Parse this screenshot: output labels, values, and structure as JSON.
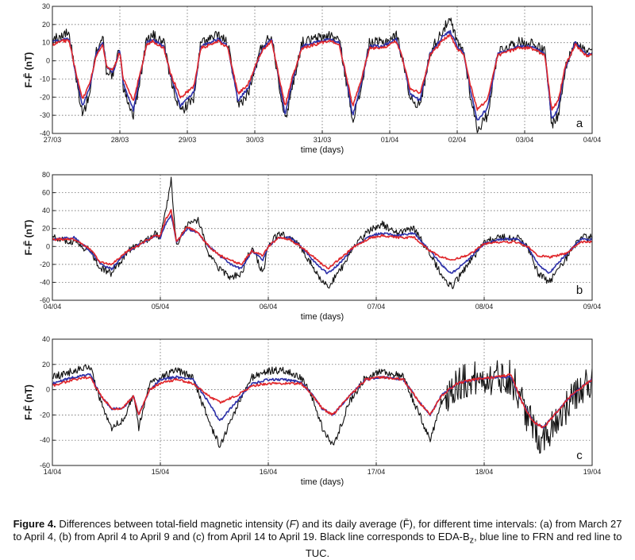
{
  "chart_data": [
    {
      "type": "line",
      "panel_label": "a",
      "xlabel": "time (days)",
      "ylabel": "F-F̄ (nT)",
      "xlim": [
        0,
        8
      ],
      "ylim": [
        -40,
        30
      ],
      "yticks": [
        -40,
        -30,
        -20,
        -10,
        0,
        10,
        20,
        30
      ],
      "xticks": [
        "27/03",
        "28/03",
        "29/03",
        "30/03",
        "31/03",
        "01/04",
        "02/04",
        "03/04",
        "04/04"
      ],
      "grid": true,
      "series": [
        {
          "color": "#111111",
          "noise": 3,
          "x": [
            0,
            0.15,
            0.25,
            0.35,
            0.45,
            0.55,
            0.65,
            0.75,
            0.8,
            0.9,
            1.0,
            1.05,
            1.2,
            1.3,
            1.4,
            1.5,
            1.55,
            1.65,
            1.75,
            1.9,
            2.1,
            2.2,
            2.35,
            2.45,
            2.6,
            2.75,
            2.9,
            3.1,
            3.25,
            3.35,
            3.45,
            3.55,
            3.7,
            3.9,
            4.1,
            4.25,
            4.35,
            4.45,
            4.55,
            4.7,
            4.9,
            5.1,
            5.2,
            5.3,
            5.45,
            5.6,
            5.8,
            5.9,
            6.0,
            6.1,
            6.2,
            6.3,
            6.45,
            6.6,
            6.75,
            6.9,
            7.1,
            7.3,
            7.4,
            7.5,
            7.6,
            7.75,
            7.9,
            8.0
          ],
          "y": [
            12,
            14,
            15,
            -10,
            -30,
            -18,
            5,
            14,
            -5,
            -8,
            8,
            -15,
            -30,
            -10,
            12,
            14,
            12,
            10,
            -10,
            -28,
            -20,
            10,
            12,
            14,
            10,
            -25,
            -18,
            8,
            14,
            -10,
            -33,
            -15,
            10,
            12,
            14,
            12,
            -10,
            -32,
            -20,
            10,
            10,
            14,
            0,
            -20,
            -25,
            5,
            18,
            22,
            10,
            5,
            -20,
            -38,
            -30,
            5,
            8,
            10,
            10,
            5,
            -35,
            -30,
            -5,
            12,
            5,
            5
          ]
        },
        {
          "color": "#2b2fa8",
          "noise": 0.8,
          "x": [
            0,
            0.15,
            0.25,
            0.35,
            0.45,
            0.55,
            0.65,
            0.75,
            0.8,
            0.9,
            1.0,
            1.05,
            1.2,
            1.3,
            1.4,
            1.5,
            1.55,
            1.65,
            1.75,
            1.9,
            2.1,
            2.2,
            2.35,
            2.45,
            2.6,
            2.75,
            2.9,
            3.1,
            3.25,
            3.35,
            3.45,
            3.55,
            3.7,
            3.9,
            4.1,
            4.25,
            4.35,
            4.45,
            4.55,
            4.7,
            4.9,
            5.1,
            5.2,
            5.3,
            5.45,
            5.6,
            5.8,
            5.9,
            6.0,
            6.1,
            6.2,
            6.3,
            6.45,
            6.6,
            6.75,
            6.9,
            7.1,
            7.3,
            7.4,
            7.5,
            7.6,
            7.75,
            7.9,
            8.0
          ],
          "y": [
            10,
            12,
            12,
            -8,
            -25,
            -15,
            4,
            10,
            -3,
            -6,
            6,
            -12,
            -27,
            -8,
            10,
            12,
            10,
            8,
            -8,
            -25,
            -17,
            8,
            10,
            12,
            8,
            -22,
            -15,
            6,
            12,
            -8,
            -30,
            -12,
            8,
            10,
            12,
            10,
            -8,
            -30,
            -17,
            8,
            8,
            12,
            0,
            -18,
            -22,
            4,
            14,
            16,
            8,
            4,
            -17,
            -33,
            -26,
            4,
            6,
            8,
            8,
            4,
            -32,
            -26,
            -4,
            10,
            4,
            4
          ]
        },
        {
          "color": "#e0262a",
          "noise": 0.8,
          "x": [
            0,
            0.15,
            0.25,
            0.35,
            0.45,
            0.55,
            0.65,
            0.75,
            0.8,
            0.9,
            1.0,
            1.05,
            1.2,
            1.3,
            1.4,
            1.5,
            1.55,
            1.65,
            1.75,
            1.9,
            2.1,
            2.2,
            2.35,
            2.45,
            2.6,
            2.75,
            2.9,
            3.1,
            3.25,
            3.35,
            3.45,
            3.55,
            3.7,
            3.9,
            4.1,
            4.25,
            4.35,
            4.45,
            4.55,
            4.7,
            4.9,
            5.1,
            5.2,
            5.3,
            5.45,
            5.6,
            5.8,
            5.9,
            6.0,
            6.1,
            6.2,
            6.3,
            6.45,
            6.6,
            6.75,
            6.9,
            7.1,
            7.3,
            7.4,
            7.5,
            7.6,
            7.75,
            7.9,
            8.0
          ],
          "y": [
            9,
            11,
            11,
            -7,
            -21,
            -13,
            3,
            9,
            -3,
            -5,
            5,
            -10,
            -22,
            -7,
            9,
            11,
            9,
            7,
            -7,
            -20,
            -14,
            7,
            9,
            11,
            7,
            -18,
            -13,
            5,
            11,
            -7,
            -25,
            -10,
            7,
            9,
            11,
            9,
            -7,
            -25,
            -14,
            7,
            7,
            11,
            0,
            -15,
            -18,
            3,
            12,
            14,
            7,
            3,
            -14,
            -27,
            -21,
            3,
            5,
            7,
            7,
            3,
            -27,
            -22,
            -3,
            9,
            3,
            3
          ]
        }
      ]
    },
    {
      "type": "line",
      "panel_label": "b",
      "xlabel": "time (days)",
      "ylabel": "F-F̄ (nT)",
      "xlim": [
        0,
        5
      ],
      "ylim": [
        -60,
        80
      ],
      "yticks": [
        -60,
        -40,
        -20,
        0,
        20,
        40,
        60,
        80
      ],
      "xticks": [
        "04/04",
        "05/04",
        "06/04",
        "07/04",
        "08/04",
        "09/04"
      ],
      "grid": true,
      "series": [
        {
          "color": "#111111",
          "noise": 4,
          "x": [
            0,
            0.2,
            0.35,
            0.45,
            0.55,
            0.7,
            0.85,
            0.95,
            1.0,
            1.05,
            1.1,
            1.15,
            1.25,
            1.35,
            1.45,
            1.55,
            1.65,
            1.75,
            1.85,
            1.95,
            2.0,
            2.1,
            2.2,
            2.3,
            2.45,
            2.55,
            2.65,
            2.8,
            2.95,
            3.05,
            3.2,
            3.35,
            3.5,
            3.6,
            3.7,
            3.85,
            4.0,
            4.15,
            4.3,
            4.4,
            4.5,
            4.6,
            4.75,
            4.9,
            5.0
          ],
          "y": [
            10,
            5,
            -5,
            -25,
            -30,
            -5,
            5,
            15,
            10,
            40,
            75,
            0,
            25,
            30,
            -10,
            -25,
            -35,
            -30,
            0,
            -30,
            0,
            15,
            10,
            0,
            -30,
            -45,
            -30,
            0,
            20,
            25,
            15,
            20,
            -10,
            -30,
            -45,
            -20,
            5,
            10,
            10,
            0,
            -30,
            -40,
            -15,
            10,
            10
          ]
        },
        {
          "color": "#2b2fa8",
          "noise": 1.2,
          "x": [
            0,
            0.2,
            0.35,
            0.45,
            0.55,
            0.7,
            0.85,
            0.95,
            1.0,
            1.05,
            1.1,
            1.15,
            1.25,
            1.35,
            1.45,
            1.55,
            1.65,
            1.75,
            1.85,
            1.95,
            2.0,
            2.1,
            2.2,
            2.3,
            2.45,
            2.55,
            2.65,
            2.8,
            2.95,
            3.05,
            3.2,
            3.35,
            3.5,
            3.6,
            3.7,
            3.85,
            4.0,
            4.15,
            4.3,
            4.4,
            4.5,
            4.6,
            4.75,
            4.9,
            5.0
          ],
          "y": [
            8,
            10,
            -5,
            -20,
            -25,
            -5,
            5,
            12,
            10,
            25,
            35,
            5,
            20,
            15,
            0,
            -10,
            -20,
            -25,
            -5,
            -15,
            0,
            10,
            10,
            0,
            -20,
            -30,
            -20,
            0,
            12,
            15,
            12,
            15,
            -5,
            -20,
            -30,
            -15,
            3,
            8,
            8,
            0,
            -20,
            -30,
            -10,
            8,
            8
          ]
        },
        {
          "color": "#e0262a",
          "noise": 1.2,
          "x": [
            0,
            0.2,
            0.35,
            0.45,
            0.55,
            0.7,
            0.85,
            0.95,
            1.0,
            1.05,
            1.1,
            1.15,
            1.25,
            1.35,
            1.45,
            1.55,
            1.65,
            1.75,
            1.85,
            1.95,
            2.0,
            2.1,
            2.2,
            2.3,
            2.45,
            2.55,
            2.65,
            2.8,
            2.95,
            3.05,
            3.2,
            3.35,
            3.5,
            3.6,
            3.7,
            3.85,
            4.0,
            4.15,
            4.3,
            4.4,
            4.5,
            4.6,
            4.75,
            4.9,
            5.0
          ],
          "y": [
            8,
            8,
            -3,
            -18,
            -20,
            -5,
            5,
            12,
            12,
            30,
            40,
            5,
            22,
            15,
            0,
            -10,
            -15,
            -20,
            -5,
            -10,
            0,
            10,
            8,
            0,
            -15,
            -25,
            -15,
            0,
            10,
            12,
            10,
            10,
            -5,
            -12,
            -15,
            -10,
            3,
            5,
            5,
            0,
            -10,
            -12,
            -8,
            5,
            5
          ]
        }
      ]
    },
    {
      "type": "line",
      "panel_label": "c",
      "xlabel": "time (days)",
      "ylabel": "F-F̄ (nT)",
      "xlim": [
        0,
        5
      ],
      "ylim": [
        -60,
        40
      ],
      "yticks": [
        -60,
        -40,
        -20,
        0,
        20,
        40
      ],
      "xticks": [
        "14/04",
        "15/04",
        "16/04",
        "17/04",
        "18/04",
        "19/04"
      ],
      "grid": true,
      "series": [
        {
          "color": "#111111",
          "noise": 3,
          "noise_from": 3.65,
          "noise_after": 14,
          "x": [
            0,
            0.2,
            0.35,
            0.45,
            0.55,
            0.65,
            0.75,
            0.8,
            0.9,
            1.0,
            1.15,
            1.3,
            1.45,
            1.55,
            1.7,
            1.85,
            2.0,
            2.15,
            2.3,
            2.4,
            2.5,
            2.6,
            2.75,
            2.9,
            3.05,
            3.25,
            3.4,
            3.5,
            3.6,
            3.75,
            3.9,
            4.1,
            4.25,
            4.35,
            4.45,
            4.55,
            4.65,
            4.8,
            4.95,
            5.0
          ],
          "y": [
            10,
            15,
            18,
            -10,
            -30,
            -25,
            -5,
            -30,
            5,
            10,
            15,
            10,
            -25,
            -45,
            -15,
            10,
            15,
            15,
            10,
            -5,
            -30,
            -45,
            -10,
            10,
            15,
            10,
            -20,
            -40,
            -10,
            5,
            8,
            10,
            10,
            -10,
            -30,
            -40,
            -25,
            -10,
            5,
            8
          ]
        },
        {
          "color": "#2b2fa8",
          "noise": 0.9,
          "x": [
            0,
            0.2,
            0.35,
            0.45,
            0.55,
            0.65,
            0.75,
            0.8,
            0.9,
            1.0,
            1.15,
            1.3,
            1.45,
            1.55,
            1.7,
            1.85,
            2.0,
            2.15,
            2.3,
            2.4,
            2.5,
            2.6,
            2.75,
            2.9,
            3.05,
            3.25,
            3.4,
            3.5,
            3.6,
            3.75,
            3.9,
            4.1,
            4.25,
            4.35,
            4.45,
            4.55,
            4.65,
            4.8,
            4.95,
            5.0
          ],
          "y": [
            5,
            10,
            12,
            -5,
            -15,
            -15,
            -5,
            -20,
            0,
            8,
            10,
            8,
            -10,
            -25,
            -10,
            5,
            8,
            8,
            6,
            -3,
            -15,
            -20,
            -5,
            8,
            10,
            8,
            -10,
            -20,
            -5,
            5,
            8,
            10,
            10,
            -10,
            -25,
            -30,
            -20,
            -5,
            5,
            8
          ]
        },
        {
          "color": "#e0262a",
          "noise": 0.9,
          "x": [
            0,
            0.2,
            0.35,
            0.45,
            0.55,
            0.65,
            0.75,
            0.8,
            0.9,
            1.0,
            1.15,
            1.3,
            1.45,
            1.55,
            1.7,
            1.85,
            2.0,
            2.15,
            2.3,
            2.4,
            2.5,
            2.6,
            2.75,
            2.9,
            3.05,
            3.25,
            3.4,
            3.5,
            3.6,
            3.75,
            3.9,
            4.1,
            4.25,
            4.35,
            4.45,
            4.55,
            4.65,
            4.8,
            4.95,
            5.0
          ],
          "y": [
            3,
            8,
            10,
            -5,
            -15,
            -15,
            -5,
            -20,
            0,
            5,
            8,
            5,
            -5,
            -10,
            -5,
            3,
            5,
            5,
            5,
            -3,
            -15,
            -20,
            -5,
            8,
            10,
            8,
            -10,
            -20,
            -5,
            5,
            8,
            10,
            12,
            -10,
            -25,
            -30,
            -20,
            -5,
            5,
            8
          ]
        }
      ]
    }
  ],
  "caption": {
    "label": "Figure 4.",
    "part1": " Differences between total-field magnetic intensity (",
    "F_symbol": "F",
    "part2": ") and its daily average (",
    "Fbar_symbol": "F̄",
    "part3": "), for different time intervals: (a) from March 27 to April 4, (b) from April 4 to April 9 and (c) from April 14 to April 19. Black line corresponds to EDA-B",
    "subscript": "z",
    "part4": ", blue line to FRN and red line to TUC."
  }
}
